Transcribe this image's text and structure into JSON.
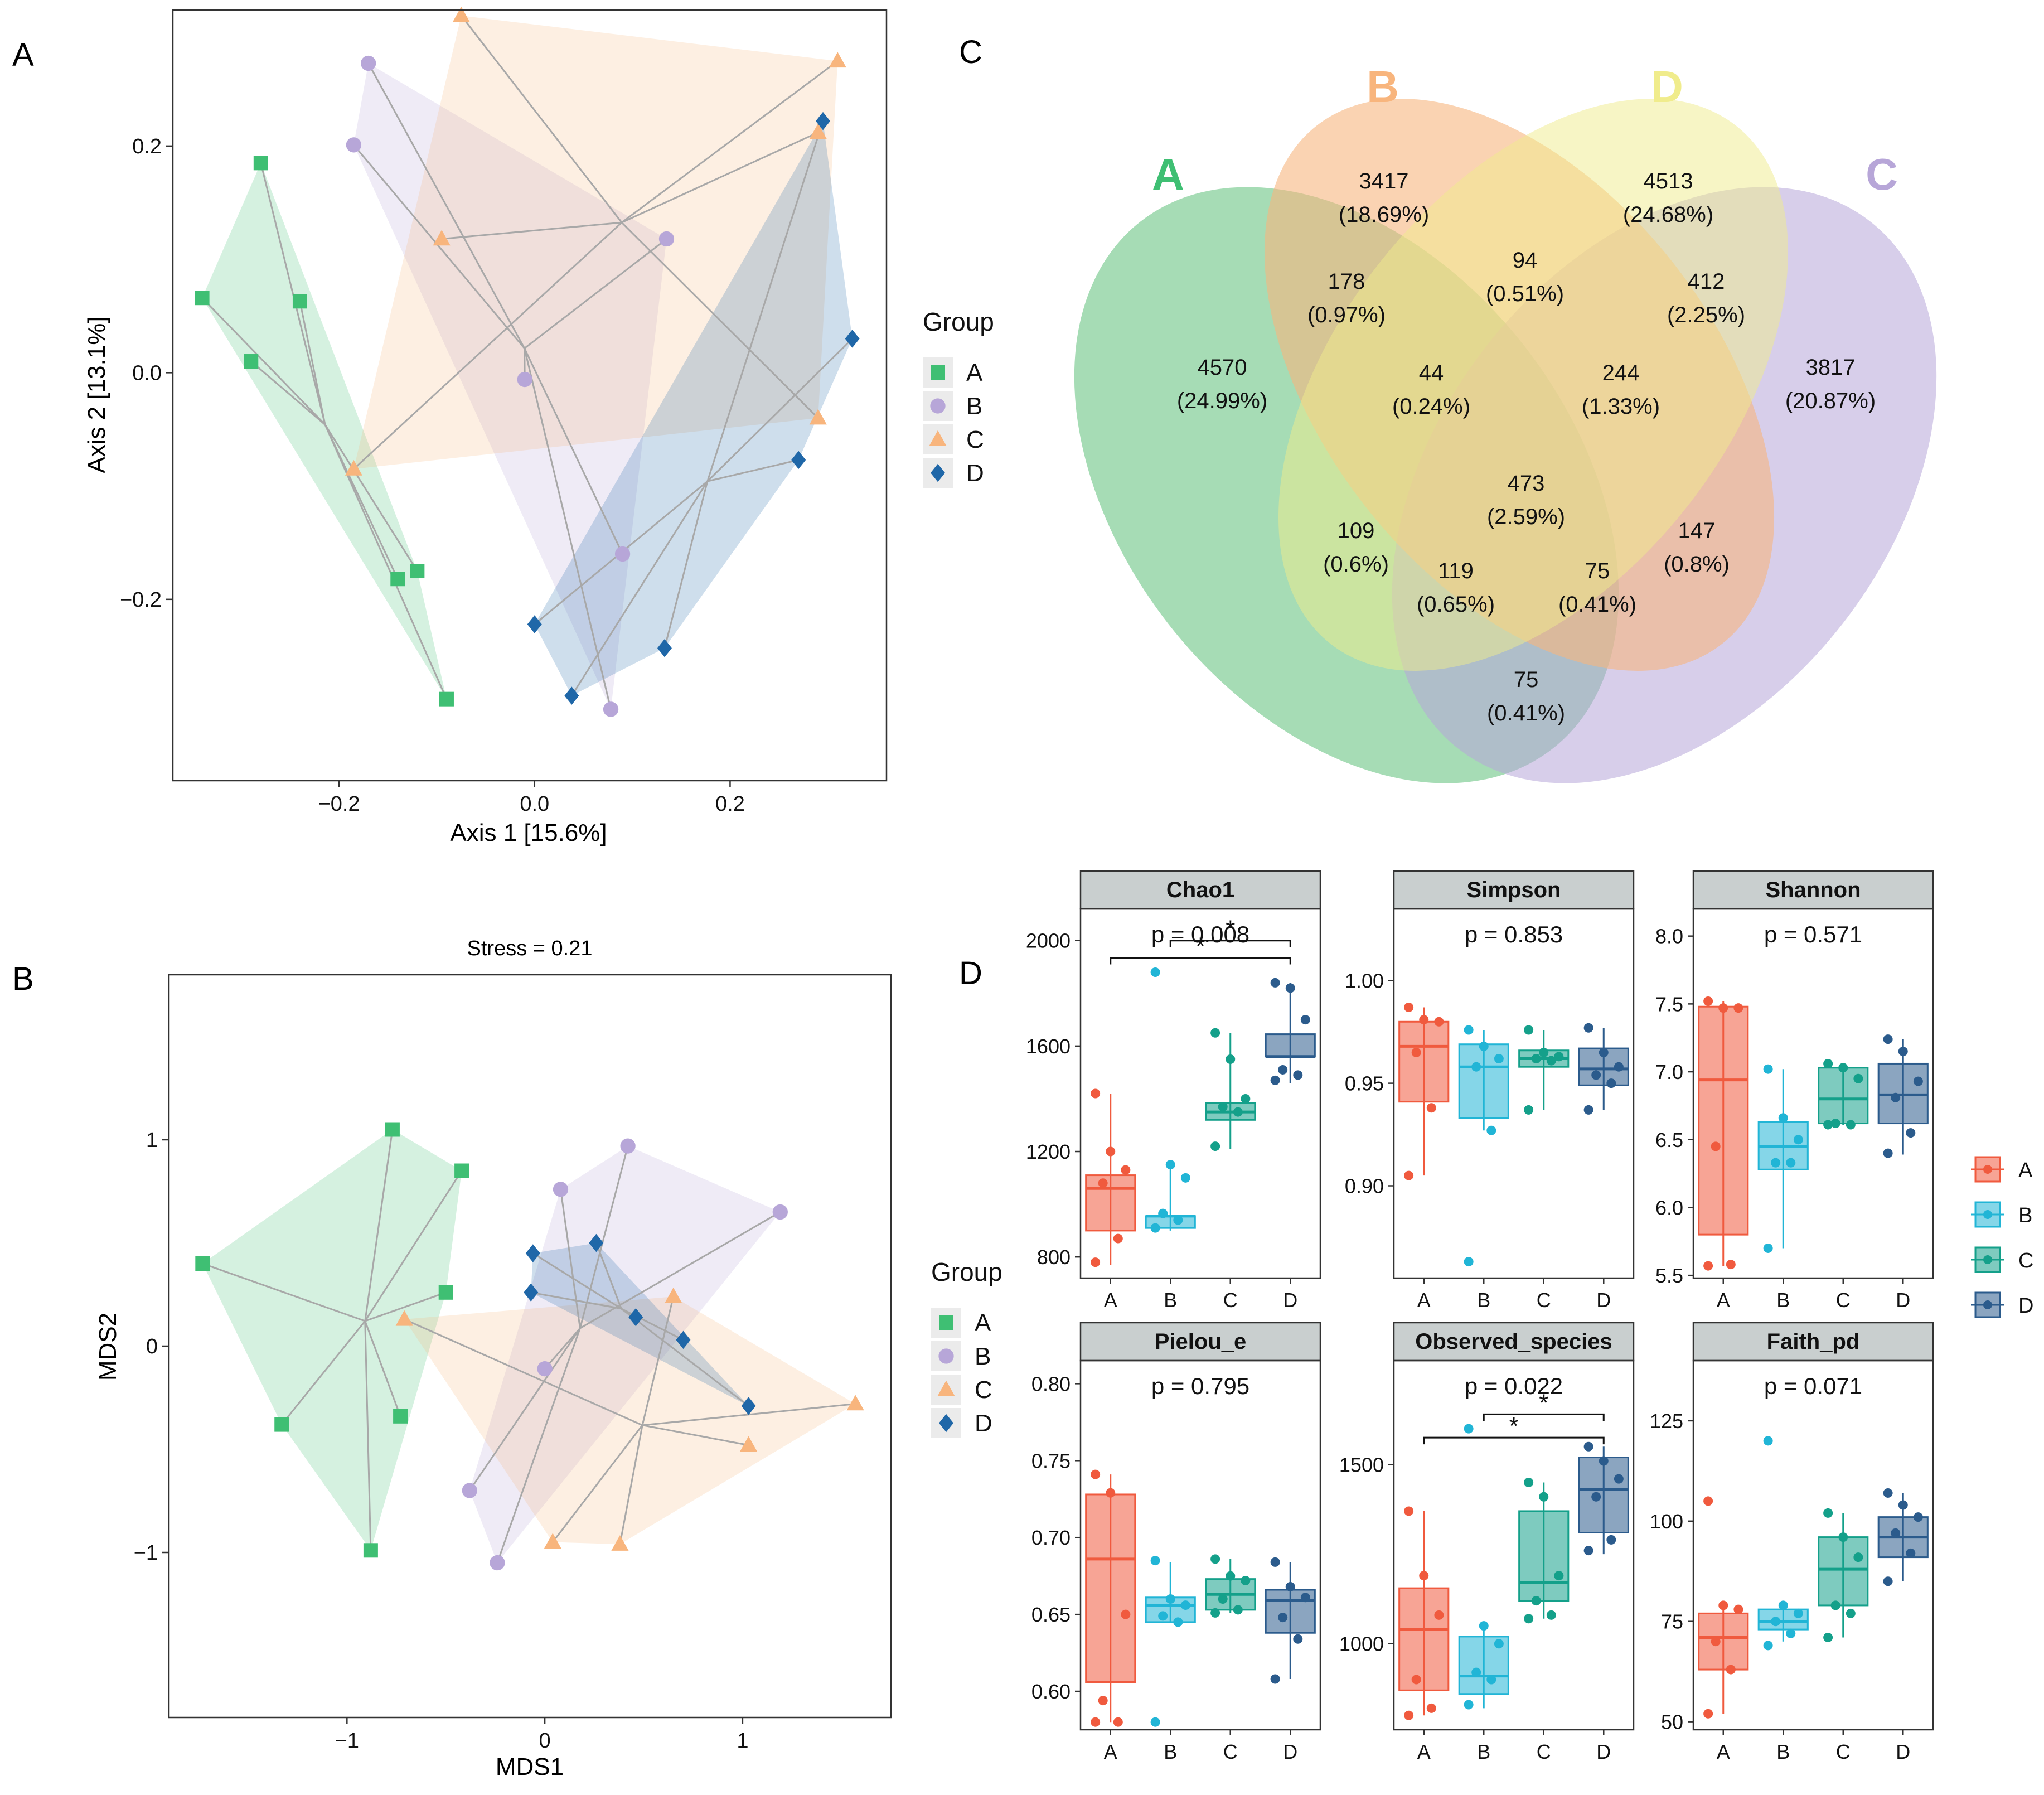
{
  "colors": {
    "group_A": "#3fbf73",
    "group_B": "#b7a6d8",
    "group_C": "#f8b57d",
    "group_D": "#1f67a8",
    "box_A": "#f05a3e",
    "box_B": "#21b5d6",
    "box_C": "#14a08a",
    "box_D": "#2b5b8c",
    "venn_A": "#5cbf78",
    "venn_B": "#f7b57e",
    "venn_C": "#b7a6d8",
    "venn_D": "#f0ec8c",
    "line_gray": "#a8a8a8",
    "strip_bg": "#c9cfcf"
  },
  "panels": {
    "A": "A",
    "B": "B",
    "C": "C",
    "D": "D"
  },
  "chart_data": [
    {
      "id": "pcoa",
      "type": "scatter",
      "title": "",
      "xlabel": "Axis 1 [15.6%]",
      "ylabel": "Axis 2 [13.1%]",
      "xlim": [
        -0.37,
        0.36
      ],
      "ylim": [
        -0.36,
        0.32
      ],
      "xticks": [
        -0.2,
        0.0,
        0.2
      ],
      "xtick_labels": [
        "−0.2",
        "0.0",
        "0.2"
      ],
      "yticks": [
        -0.2,
        0.0,
        0.2
      ],
      "ytick_labels": [
        "−0.2",
        "0.0",
        "0.2"
      ],
      "legend_title": "Group",
      "legend": [
        "A",
        "B",
        "C",
        "D"
      ],
      "series": [
        {
          "name": "A",
          "shape": "square",
          "points": [
            [
              -0.28,
              0.185
            ],
            [
              -0.34,
              0.066
            ],
            [
              -0.24,
              0.063
            ],
            [
              -0.29,
              0.01
            ],
            [
              -0.12,
              -0.175
            ],
            [
              -0.14,
              -0.182
            ],
            [
              -0.09,
              -0.288
            ]
          ]
        },
        {
          "name": "B",
          "shape": "circle",
          "points": [
            [
              -0.17,
              0.273
            ],
            [
              -0.185,
              0.201
            ],
            [
              0.135,
              0.118
            ],
            [
              -0.01,
              -0.006
            ],
            [
              0.09,
              -0.16
            ],
            [
              0.078,
              -0.297
            ]
          ]
        },
        {
          "name": "C",
          "shape": "triangle",
          "points": [
            [
              -0.075,
              0.315
            ],
            [
              0.31,
              0.275
            ],
            [
              0.29,
              0.212
            ],
            [
              -0.095,
              0.118
            ],
            [
              -0.185,
              -0.085
            ],
            [
              0.29,
              -0.04
            ]
          ]
        },
        {
          "name": "D",
          "shape": "diamond",
          "points": [
            [
              0.295,
              0.222
            ],
            [
              0.325,
              0.03
            ],
            [
              0.27,
              -0.077
            ],
            [
              0.0,
              -0.222
            ],
            [
              0.038,
              -0.285
            ],
            [
              0.133,
              -0.243
            ]
          ]
        }
      ]
    },
    {
      "id": "nmds",
      "type": "scatter",
      "title": "Stress = 0.21",
      "xlabel": "MDS1",
      "ylabel": "MDS2",
      "xlim": [
        -1.9,
        1.75
      ],
      "ylim": [
        -1.8,
        1.8
      ],
      "xticks": [
        -1,
        0,
        1
      ],
      "xtick_labels": [
        "−1",
        "0",
        "1"
      ],
      "yticks": [
        -1,
        0,
        1
      ],
      "ytick_labels": [
        "−1",
        "0",
        "1"
      ],
      "legend_title": "Group",
      "legend": [
        "A",
        "B",
        "C",
        "D"
      ],
      "series": [
        {
          "name": "A",
          "shape": "square",
          "points": [
            [
              -0.77,
              1.05
            ],
            [
              -0.42,
              0.85
            ],
            [
              -1.73,
              0.4
            ],
            [
              -0.5,
              0.26
            ],
            [
              -1.33,
              -0.38
            ],
            [
              -0.73,
              -0.34
            ],
            [
              -0.88,
              -0.99
            ]
          ]
        },
        {
          "name": "B",
          "shape": "circle",
          "points": [
            [
              0.42,
              0.97
            ],
            [
              0.08,
              0.76
            ],
            [
              1.19,
              0.65
            ],
            [
              0.0,
              -0.11
            ],
            [
              -0.38,
              -0.7
            ],
            [
              -0.24,
              -1.05
            ]
          ]
        },
        {
          "name": "C",
          "shape": "triangle",
          "points": [
            [
              -0.71,
              0.13
            ],
            [
              0.65,
              0.24
            ],
            [
              1.57,
              -0.28
            ],
            [
              1.03,
              -0.48
            ],
            [
              0.04,
              -0.95
            ],
            [
              0.38,
              -0.96
            ]
          ]
        },
        {
          "name": "D",
          "shape": "diamond",
          "points": [
            [
              -0.06,
              0.45
            ],
            [
              0.26,
              0.5
            ],
            [
              -0.07,
              0.26
            ],
            [
              0.46,
              0.14
            ],
            [
              0.7,
              0.03
            ],
            [
              1.03,
              -0.29
            ]
          ]
        }
      ]
    },
    {
      "id": "venn",
      "type": "venn",
      "sets": [
        "A",
        "B",
        "D",
        "C"
      ],
      "regions": [
        {
          "count": "4570",
          "percent": "(24.99%)"
        },
        {
          "count": "3417",
          "percent": "(18.69%)"
        },
        {
          "count": "4513",
          "percent": "(24.68%)"
        },
        {
          "count": "3817",
          "percent": "(20.87%)"
        },
        {
          "count": "178",
          "percent": "(0.97%)"
        },
        {
          "count": "94",
          "percent": "(0.51%)"
        },
        {
          "count": "412",
          "percent": "(2.25%)"
        },
        {
          "count": "44",
          "percent": "(0.24%)"
        },
        {
          "count": "244",
          "percent": "(1.33%)"
        },
        {
          "count": "473",
          "percent": "(2.59%)"
        },
        {
          "count": "109",
          "percent": "(0.6%)"
        },
        {
          "count": "147",
          "percent": "(0.8%)"
        },
        {
          "count": "119",
          "percent": "(0.65%)"
        },
        {
          "count": "75",
          "percent": "(0.41%)"
        },
        {
          "count": "75",
          "percent": "(0.41%)"
        }
      ]
    },
    {
      "id": "alpha",
      "type": "box",
      "categories": [
        "A",
        "B",
        "C",
        "D"
      ],
      "legend": [
        "A",
        "B",
        "C",
        "D"
      ],
      "facets": [
        {
          "name": "Chao1",
          "pvalue": "p = 0.008",
          "ylim": [
            720,
            2120
          ],
          "yticks": [
            800,
            1200,
            1600,
            2000
          ],
          "boxes": [
            [
              900,
              1060,
              1110,
              1200,
              770
            ],
            [
              910,
              955,
              955,
              1100,
              1150
            ],
            [
              1320,
              1350,
              1385,
              1560,
              1650
            ],
            [
              1560,
              1560,
              1645,
              1810,
              1840
            ]
          ],
          "whiskers": [
            [
              770,
              1420
            ],
            [
              900,
              1150
            ],
            [
              1210,
              1650
            ],
            [
              1460,
              1840
            ]
          ],
          "points": [
            [
              1420,
              1200,
              1130,
              1080,
              870,
              780
            ],
            [
              1880,
              1150,
              1100,
              965,
              940,
              910
            ],
            [
              1650,
              1550,
              1400,
              1370,
              1350,
              1220
            ],
            [
              1840,
              1820,
              1700,
              1510,
              1490,
              1470
            ]
          ],
          "sig": [
            {
              "from": 2,
              "to": 4,
              "label": "*",
              "y": 2000
            },
            {
              "from": 1,
              "to": 4,
              "label": "*",
              "y": 1935
            }
          ]
        },
        {
          "name": "Simpson",
          "pvalue": "p = 0.853",
          "ylim": [
            0.855,
            1.035
          ],
          "yticks": [
            0.9,
            0.95,
            1.0
          ],
          "boxes": [
            [
              0.941,
              0.968,
              0.98,
              0,
              0
            ],
            [
              0.933,
              0.958,
              0.969,
              0,
              0
            ],
            [
              0.958,
              0.962,
              0.966,
              0,
              0
            ],
            [
              0.949,
              0.957,
              0.967,
              0,
              0
            ]
          ],
          "whiskers": [
            [
              0.905,
              0.987
            ],
            [
              0.927,
              0.976
            ],
            [
              0.937,
              0.976
            ],
            [
              0.937,
              0.977
            ]
          ],
          "points": [
            [
              0.987,
              0.981,
              0.98,
              0.965,
              0.938,
              0.905
            ],
            [
              0.976,
              0.968,
              0.962,
              0.958,
              0.927,
              0.863
            ],
            [
              0.976,
              0.965,
              0.963,
              0.962,
              0.961,
              0.937
            ],
            [
              0.977,
              0.965,
              0.958,
              0.954,
              0.95,
              0.937
            ]
          ],
          "sig": []
        },
        {
          "name": "Shannon",
          "pvalue": "p = 0.571",
          "ylim": [
            5.48,
            8.2
          ],
          "yticks": [
            5.5,
            6.0,
            6.5,
            7.0,
            7.5,
            8.0
          ],
          "boxes": [
            [
              5.8,
              6.94,
              7.48,
              0,
              0
            ],
            [
              6.28,
              6.45,
              6.63,
              0,
              0
            ],
            [
              6.62,
              6.8,
              7.03,
              0,
              0
            ],
            [
              6.62,
              6.83,
              7.06,
              0,
              0
            ]
          ],
          "whiskers": [
            [
              5.57,
              7.52
            ],
            [
              5.7,
              7.02
            ],
            [
              6.61,
              7.06
            ],
            [
              6.39,
              7.24
            ]
          ],
          "points": [
            [
              7.52,
              7.47,
              7.47,
              6.45,
              5.58,
              5.57
            ],
            [
              7.02,
              6.66,
              6.5,
              6.33,
              6.33,
              5.7
            ],
            [
              7.06,
              7.03,
              6.95,
              6.62,
              6.61,
              6.61
            ],
            [
              7.24,
              7.15,
              6.93,
              6.81,
              6.55,
              6.4
            ]
          ],
          "sig": []
        },
        {
          "name": "Pielou_e",
          "pvalue": "p = 0.795",
          "ylim": [
            0.575,
            0.815
          ],
          "yticks": [
            0.6,
            0.65,
            0.7,
            0.75,
            0.8
          ],
          "boxes": [
            [
              0.606,
              0.686,
              0.728,
              0,
              0
            ],
            [
              0.645,
              0.656,
              0.661,
              0,
              0
            ],
            [
              0.653,
              0.663,
              0.673,
              0,
              0
            ],
            [
              0.638,
              0.659,
              0.666,
              0,
              0
            ]
          ],
          "whiskers": [
            [
              0.58,
              0.741
            ],
            [
              0.645,
              0.684
            ],
            [
              0.651,
              0.686
            ],
            [
              0.608,
              0.684
            ]
          ],
          "points": [
            [
              0.741,
              0.729,
              0.65,
              0.594,
              0.58,
              0.58
            ],
            [
              0.685,
              0.66,
              0.656,
              0.649,
              0.645,
              0.58
            ],
            [
              0.686,
              0.675,
              0.672,
              0.66,
              0.653,
              0.651
            ],
            [
              0.684,
              0.668,
              0.661,
              0.648,
              0.634,
              0.608
            ]
          ],
          "sig": []
        },
        {
          "name": "Observed_species",
          "pvalue": "p = 0.022",
          "ylim": [
            760,
            1790
          ],
          "yticks": [
            1000,
            1500
          ],
          "boxes": [
            [
              870,
              1040,
              1155,
              0,
              0
            ],
            [
              860,
              910,
              1020,
              0,
              0
            ],
            [
              1120,
              1170,
              1370,
              0,
              0
            ],
            [
              1310,
              1430,
              1520,
              0,
              0
            ]
          ],
          "whiskers": [
            [
              800,
              1370
            ],
            [
              820,
              1050
            ],
            [
              1070,
              1450
            ],
            [
              1250,
              1550
            ]
          ],
          "points": [
            [
              1370,
              1190,
              1080,
              900,
              820,
              800
            ],
            [
              1600,
              1050,
              1000,
              920,
              900,
              830
            ],
            [
              1450,
              1410,
              1190,
              1120,
              1080,
              1070
            ],
            [
              1550,
              1510,
              1460,
              1410,
              1290,
              1260
            ]
          ],
          "sig": [
            {
              "from": 2,
              "to": 4,
              "label": "*",
              "y": 1640
            },
            {
              "from": 1,
              "to": 4,
              "label": "*",
              "y": 1575
            }
          ]
        },
        {
          "name": "Faith_pd",
          "pvalue": "p = 0.071",
          "ylim": [
            48,
            140
          ],
          "yticks": [
            50,
            75,
            100,
            125
          ],
          "boxes": [
            [
              63,
              71,
              77,
              0,
              0
            ],
            [
              73,
              75,
              78,
              0,
              0
            ],
            [
              79,
              88,
              96,
              0,
              0
            ],
            [
              91,
              96,
              101,
              0,
              0
            ]
          ],
          "whiskers": [
            [
              52,
              79
            ],
            [
              70,
              79
            ],
            [
              71,
              102
            ],
            [
              85,
              107
            ]
          ],
          "points": [
            [
              105,
              79,
              78,
              70,
              63,
              52
            ],
            [
              120,
              79,
              77,
              75,
              72,
              69
            ],
            [
              102,
              96,
              91,
              79,
              77,
              71
            ],
            [
              107,
              104,
              101,
              97,
              92,
              85
            ]
          ],
          "sig": []
        }
      ]
    }
  ]
}
